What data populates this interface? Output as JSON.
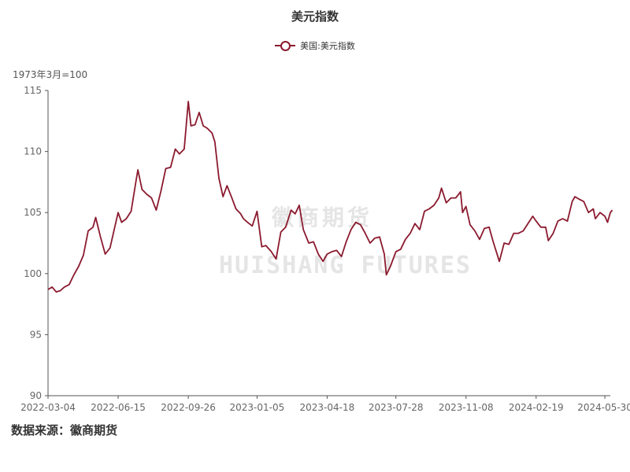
{
  "chart_data": {
    "type": "line",
    "title": "美元指数",
    "ylabel": "1973年3月=100",
    "ylim": [
      90,
      115
    ],
    "yticks": [
      90,
      95,
      100,
      105,
      110,
      115
    ],
    "xticks": [
      "2022-03-04",
      "2022-06-15",
      "2022-09-26",
      "2023-01-05",
      "2023-04-18",
      "2023-07-28",
      "2023-11-08",
      "2024-02-19",
      "2024-05-30"
    ],
    "x_start": "2022-03-04",
    "x_end": "2024-06-07",
    "grid": false,
    "legend_position": "top-center",
    "series": [
      {
        "name": "美国:美元指数",
        "color": "#8B1A2E",
        "points": [
          [
            "2022-03-04",
            98.7
          ],
          [
            "2022-03-10",
            98.9
          ],
          [
            "2022-03-16",
            98.5
          ],
          [
            "2022-03-22",
            98.6
          ],
          [
            "2022-03-28",
            98.9
          ],
          [
            "2022-04-04",
            99.1
          ],
          [
            "2022-04-11",
            99.9
          ],
          [
            "2022-04-18",
            100.6
          ],
          [
            "2022-04-25",
            101.5
          ],
          [
            "2022-05-02",
            103.5
          ],
          [
            "2022-05-09",
            103.8
          ],
          [
            "2022-05-13",
            104.6
          ],
          [
            "2022-05-20",
            103.0
          ],
          [
            "2022-05-27",
            101.6
          ],
          [
            "2022-06-03",
            102.1
          ],
          [
            "2022-06-10",
            103.8
          ],
          [
            "2022-06-15",
            105.0
          ],
          [
            "2022-06-20",
            104.2
          ],
          [
            "2022-06-27",
            104.5
          ],
          [
            "2022-07-04",
            105.1
          ],
          [
            "2022-07-11",
            107.5
          ],
          [
            "2022-07-14",
            108.5
          ],
          [
            "2022-07-20",
            106.9
          ],
          [
            "2022-07-27",
            106.5
          ],
          [
            "2022-08-03",
            106.2
          ],
          [
            "2022-08-10",
            105.2
          ],
          [
            "2022-08-17",
            106.8
          ],
          [
            "2022-08-24",
            108.6
          ],
          [
            "2022-08-31",
            108.7
          ],
          [
            "2022-09-07",
            110.2
          ],
          [
            "2022-09-13",
            109.8
          ],
          [
            "2022-09-20",
            110.2
          ],
          [
            "2022-09-26",
            114.1
          ],
          [
            "2022-09-30",
            112.1
          ],
          [
            "2022-10-06",
            112.2
          ],
          [
            "2022-10-12",
            113.2
          ],
          [
            "2022-10-18",
            112.1
          ],
          [
            "2022-10-24",
            111.9
          ],
          [
            "2022-10-31",
            111.5
          ],
          [
            "2022-11-04",
            110.8
          ],
          [
            "2022-11-10",
            107.8
          ],
          [
            "2022-11-16",
            106.3
          ],
          [
            "2022-11-22",
            107.2
          ],
          [
            "2022-11-29",
            106.2
          ],
          [
            "2022-12-05",
            105.3
          ],
          [
            "2022-12-12",
            104.9
          ],
          [
            "2022-12-16",
            104.5
          ],
          [
            "2022-12-22",
            104.2
          ],
          [
            "2022-12-29",
            103.9
          ],
          [
            "2023-01-05",
            105.1
          ],
          [
            "2023-01-12",
            102.2
          ],
          [
            "2023-01-18",
            102.3
          ],
          [
            "2023-01-26",
            101.8
          ],
          [
            "2023-02-02",
            101.2
          ],
          [
            "2023-02-09",
            103.4
          ],
          [
            "2023-02-16",
            103.8
          ],
          [
            "2023-02-24",
            105.2
          ],
          [
            "2023-03-02",
            104.9
          ],
          [
            "2023-03-08",
            105.6
          ],
          [
            "2023-03-14",
            103.6
          ],
          [
            "2023-03-22",
            102.5
          ],
          [
            "2023-03-29",
            102.6
          ],
          [
            "2023-04-05",
            101.6
          ],
          [
            "2023-04-12",
            101.0
          ],
          [
            "2023-04-18",
            101.6
          ],
          [
            "2023-04-25",
            101.8
          ],
          [
            "2023-05-02",
            101.9
          ],
          [
            "2023-05-09",
            101.4
          ],
          [
            "2023-05-16",
            102.6
          ],
          [
            "2023-05-23",
            103.6
          ],
          [
            "2023-05-30",
            104.2
          ],
          [
            "2023-06-06",
            104.0
          ],
          [
            "2023-06-13",
            103.3
          ],
          [
            "2023-06-20",
            102.5
          ],
          [
            "2023-06-27",
            102.9
          ],
          [
            "2023-07-04",
            103.0
          ],
          [
            "2023-07-11",
            101.6
          ],
          [
            "2023-07-14",
            99.9
          ],
          [
            "2023-07-20",
            100.6
          ],
          [
            "2023-07-28",
            101.8
          ],
          [
            "2023-08-04",
            102.0
          ],
          [
            "2023-08-11",
            102.8
          ],
          [
            "2023-08-18",
            103.3
          ],
          [
            "2023-08-25",
            104.1
          ],
          [
            "2023-09-01",
            103.6
          ],
          [
            "2023-09-08",
            105.1
          ],
          [
            "2023-09-15",
            105.3
          ],
          [
            "2023-09-22",
            105.6
          ],
          [
            "2023-09-29",
            106.2
          ],
          [
            "2023-10-03",
            107.0
          ],
          [
            "2023-10-10",
            105.8
          ],
          [
            "2023-10-17",
            106.2
          ],
          [
            "2023-10-24",
            106.2
          ],
          [
            "2023-10-31",
            106.7
          ],
          [
            "2023-11-03",
            105.0
          ],
          [
            "2023-11-08",
            105.5
          ],
          [
            "2023-11-14",
            104.0
          ],
          [
            "2023-11-21",
            103.5
          ],
          [
            "2023-11-28",
            102.8
          ],
          [
            "2023-12-05",
            103.7
          ],
          [
            "2023-12-12",
            103.8
          ],
          [
            "2023-12-18",
            102.6
          ],
          [
            "2023-12-27",
            101.0
          ],
          [
            "2024-01-03",
            102.5
          ],
          [
            "2024-01-10",
            102.4
          ],
          [
            "2024-01-17",
            103.3
          ],
          [
            "2024-01-24",
            103.3
          ],
          [
            "2024-01-31",
            103.5
          ],
          [
            "2024-02-07",
            104.1
          ],
          [
            "2024-02-14",
            104.7
          ],
          [
            "2024-02-19",
            104.3
          ],
          [
            "2024-02-26",
            103.8
          ],
          [
            "2024-03-04",
            103.8
          ],
          [
            "2024-03-08",
            102.7
          ],
          [
            "2024-03-15",
            103.3
          ],
          [
            "2024-03-22",
            104.3
          ],
          [
            "2024-03-29",
            104.5
          ],
          [
            "2024-04-05",
            104.3
          ],
          [
            "2024-04-12",
            105.9
          ],
          [
            "2024-04-16",
            106.3
          ],
          [
            "2024-04-22",
            106.1
          ],
          [
            "2024-04-29",
            105.9
          ],
          [
            "2024-05-06",
            105.0
          ],
          [
            "2024-05-13",
            105.3
          ],
          [
            "2024-05-16",
            104.5
          ],
          [
            "2024-05-23",
            105.0
          ],
          [
            "2024-05-30",
            104.7
          ],
          [
            "2024-06-03",
            104.2
          ],
          [
            "2024-06-07",
            105.0
          ],
          [
            "2024-06-10",
            105.2
          ]
        ]
      }
    ]
  },
  "source": "数据来源：徽商期货",
  "watermark": {
    "cn": "徽商期货",
    "en": "HUISHANG FUTURES"
  }
}
